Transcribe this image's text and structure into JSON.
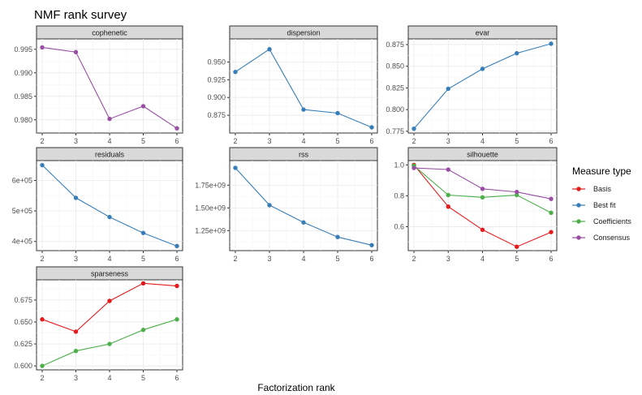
{
  "title": "NMF rank survey",
  "xlabel": "Factorization rank",
  "legend": {
    "title": "Measure type",
    "entries": [
      {
        "name": "Basis",
        "color": "#E41A1C"
      },
      {
        "name": "Best fit",
        "color": "#377EB8"
      },
      {
        "name": "Coefficients",
        "color": "#4DAF4A"
      },
      {
        "name": "Consensus",
        "color": "#984EA3"
      }
    ]
  },
  "chart_data": [
    {
      "type": "line",
      "title": "cophenetic",
      "x": [
        2,
        3,
        4,
        5,
        6
      ],
      "ylim": [
        0.9772,
        0.9972
      ],
      "yticks": [
        0.98,
        0.985,
        0.99,
        0.995
      ],
      "ytick_labels": [
        "0.980",
        "0.985",
        "0.990",
        "0.995"
      ],
      "series": [
        {
          "name": "Consensus",
          "values": [
            0.9954,
            0.9944,
            0.9802,
            0.9829,
            0.9782
          ]
        }
      ]
    },
    {
      "type": "line",
      "title": "dispersion",
      "x": [
        2,
        3,
        4,
        5,
        6
      ],
      "ylim": [
        0.85,
        0.9825
      ],
      "yticks": [
        0.875,
        0.9,
        0.925,
        0.95
      ],
      "ytick_labels": [
        "0.875",
        "0.900",
        "0.925",
        "0.950"
      ],
      "series": [
        {
          "name": "Best fit",
          "values": [
            0.936,
            0.968,
            0.883,
            0.878,
            0.858
          ]
        }
      ]
    },
    {
      "type": "line",
      "title": "evar",
      "x": [
        2,
        3,
        4,
        5,
        6
      ],
      "ylim": [
        0.773,
        0.8815
      ],
      "yticks": [
        0.775,
        0.8,
        0.825,
        0.85,
        0.875
      ],
      "ytick_labels": [
        "0.775",
        "0.800",
        "0.825",
        "0.850",
        "0.875"
      ],
      "series": [
        {
          "name": "Best fit",
          "values": [
            0.778,
            0.824,
            0.847,
            0.865,
            0.876
          ]
        }
      ]
    },
    {
      "type": "line",
      "title": "residuals",
      "x": [
        2,
        3,
        4,
        5,
        6
      ],
      "ylim": [
        370000,
        665000
      ],
      "yticks": [
        400000,
        500000,
        600000
      ],
      "ytick_labels": [
        "4e+05",
        "5e+05",
        "6e+05"
      ],
      "series": [
        {
          "name": "Best fit",
          "values": [
            650000,
            543000,
            480000,
            428000,
            385000
          ]
        }
      ]
    },
    {
      "type": "line",
      "title": "rss",
      "x": [
        2,
        3,
        4,
        5,
        6
      ],
      "ylim": [
        1030000000,
        2020000000
      ],
      "yticks": [
        1250000000,
        1500000000,
        1750000000
      ],
      "ytick_labels": [
        "1.25e+09",
        "1.50e+09",
        "1.75e+09"
      ],
      "series": [
        {
          "name": "Best fit",
          "values": [
            1940000000,
            1530000000,
            1340000000,
            1180000000,
            1090000000
          ]
        }
      ]
    },
    {
      "type": "line",
      "title": "silhouette",
      "x": [
        2,
        3,
        4,
        5,
        6
      ],
      "ylim": [
        0.445,
        1.028
      ],
      "yticks": [
        0.6,
        0.8,
        1.0
      ],
      "ytick_labels": [
        "0.6",
        "0.8",
        "1.0"
      ],
      "series": [
        {
          "name": "Basis",
          "values": [
            1.0,
            0.73,
            0.58,
            0.47,
            0.565
          ]
        },
        {
          "name": "Coefficients",
          "values": [
            0.995,
            0.805,
            0.79,
            0.805,
            0.69
          ]
        },
        {
          "name": "Consensus",
          "values": [
            0.98,
            0.97,
            0.845,
            0.825,
            0.78
          ]
        }
      ]
    },
    {
      "type": "line",
      "title": "sparseness",
      "x": [
        2,
        3,
        4,
        5,
        6
      ],
      "ylim": [
        0.5955,
        0.698
      ],
      "yticks": [
        0.6,
        0.625,
        0.65,
        0.675
      ],
      "ytick_labels": [
        "0.600",
        "0.625",
        "0.650",
        "0.675"
      ],
      "series": [
        {
          "name": "Basis",
          "values": [
            0.653,
            0.639,
            0.674,
            0.694,
            0.691
          ]
        },
        {
          "name": "Coefficients",
          "values": [
            0.6,
            0.617,
            0.625,
            0.641,
            0.653
          ]
        }
      ]
    }
  ]
}
